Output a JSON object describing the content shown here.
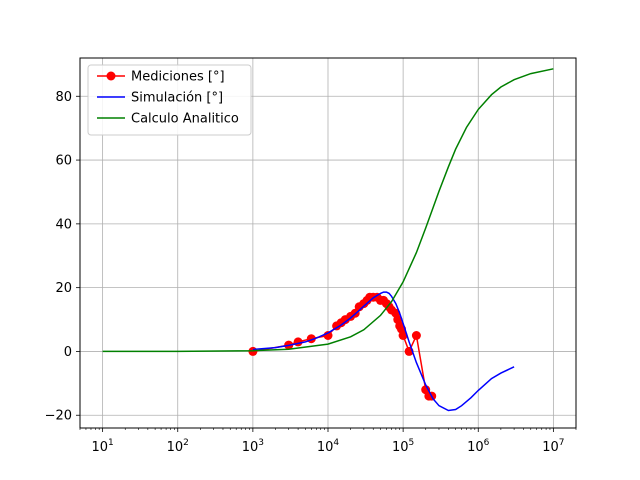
{
  "chart_data": {
    "type": "line",
    "title": "",
    "xlabel": "",
    "ylabel": "",
    "xscale": "log",
    "xlim": [
      5,
      20000000
    ],
    "ylim": [
      -24,
      92
    ],
    "xticks": [
      {
        "value": 10,
        "base": "10",
        "exp": "1"
      },
      {
        "value": 100,
        "base": "10",
        "exp": "2"
      },
      {
        "value": 1000,
        "base": "10",
        "exp": "3"
      },
      {
        "value": 10000,
        "base": "10",
        "exp": "4"
      },
      {
        "value": 100000,
        "base": "10",
        "exp": "5"
      },
      {
        "value": 1000000,
        "base": "10",
        "exp": "6"
      },
      {
        "value": 10000000,
        "base": "10",
        "exp": "7"
      }
    ],
    "yticks": [
      -20,
      0,
      20,
      40,
      60,
      80
    ],
    "grid": true,
    "legend_position": "top-left",
    "series": [
      {
        "name": "Mediciones [°]",
        "color": "#ff0000",
        "marker": "circle",
        "x": [
          1000,
          3000,
          4000,
          6000,
          10000,
          13000,
          15000,
          17000,
          20000,
          23000,
          26000,
          30000,
          33000,
          36000,
          40000,
          45000,
          50000,
          55000,
          60000,
          65000,
          70000,
          80000,
          85000,
          90000,
          95000,
          100000,
          120000,
          150000,
          200000,
          220000,
          240000
        ],
        "y": [
          0,
          2,
          3,
          4,
          5,
          8,
          9,
          10,
          11,
          12,
          14,
          15,
          16,
          17,
          17,
          17,
          16,
          16,
          15,
          14,
          13,
          12,
          10,
          8,
          7,
          5,
          0,
          5,
          -12,
          -14,
          -14
        ]
      },
      {
        "name": "Simulación [°]",
        "color": "#0000ff",
        "marker": "none",
        "x": [
          1000,
          2000,
          3000,
          5000,
          7000,
          10000,
          15000,
          20000,
          25000,
          30000,
          40000,
          50000,
          55000,
          60000,
          65000,
          70000,
          80000,
          90000,
          100000,
          120000,
          150000,
          200000,
          250000,
          300000,
          400000,
          500000,
          600000,
          800000,
          1000000,
          1500000,
          2000000,
          3000000
        ],
        "y": [
          0.6,
          1.2,
          1.9,
          3.0,
          4.2,
          5.8,
          8.3,
          10.5,
          12.5,
          14.2,
          16.8,
          18.2,
          18.6,
          18.6,
          18.2,
          17.3,
          15.0,
          12.0,
          8.8,
          3.0,
          -3.5,
          -10.5,
          -14.8,
          -17.0,
          -18.5,
          -18.2,
          -17.0,
          -14.5,
          -12.2,
          -8.5,
          -6.8,
          -4.8
        ]
      },
      {
        "name": "Calculo Analitico",
        "color": "#008000",
        "marker": "none",
        "x": [
          10,
          100,
          1000,
          3000,
          10000,
          20000,
          30000,
          50000,
          70000,
          100000,
          150000,
          200000,
          250000,
          300000,
          400000,
          500000,
          700000,
          1000000,
          1500000,
          2000000,
          3000000,
          5000000,
          10000000
        ],
        "y": [
          0.0,
          0.02,
          0.23,
          0.69,
          2.3,
          4.6,
          6.8,
          11.3,
          15.6,
          21.8,
          31.0,
          38.7,
          45.0,
          50.2,
          57.9,
          63.4,
          70.3,
          75.9,
          80.5,
          82.9,
          85.2,
          87.1,
          88.6
        ]
      }
    ]
  }
}
